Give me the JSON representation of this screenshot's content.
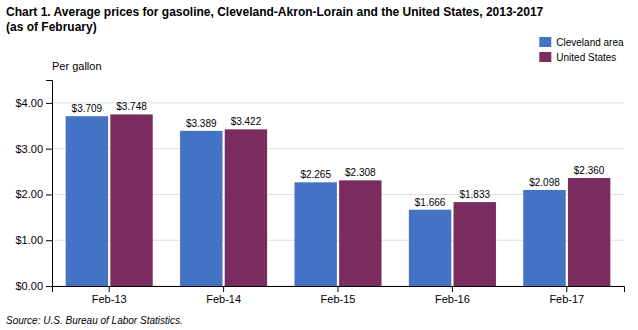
{
  "chart_data": {
    "type": "bar",
    "title": "Chart 1. Average prices for gasoline, Cleveland-Akron-Lorain and the United States, 2013-2017",
    "subtitle": "(as of February)",
    "y_label": "Per gallon",
    "source": "Source: U.S. Bureau of Labor Statistics.",
    "categories": [
      "Feb-13",
      "Feb-14",
      "Feb-15",
      "Feb-16",
      "Feb-17"
    ],
    "series": [
      {
        "name": "Cleveland area",
        "color": "#4472C4",
        "values": [
          3.709,
          3.389,
          2.265,
          1.666,
          2.098
        ],
        "value_labels": [
          "$3.709",
          "$3.389",
          "$2.265",
          "$1.666",
          "$2.098"
        ]
      },
      {
        "name": "United States",
        "color": "#7B2C5E",
        "values": [
          3.748,
          3.422,
          2.308,
          1.833,
          2.36
        ],
        "value_labels": [
          "$3.748",
          "$3.422",
          "$2.308",
          "$1.833",
          "$2.360"
        ]
      }
    ],
    "ylim": [
      0,
      4.5
    ],
    "yticks": [
      {
        "value": 0.0,
        "label": "$0.00"
      },
      {
        "value": 1.0,
        "label": "$1.00"
      },
      {
        "value": 2.0,
        "label": "$2.00"
      },
      {
        "value": 3.0,
        "label": "$3.00"
      },
      {
        "value": 4.0,
        "label": "$4.00"
      }
    ],
    "grid": true,
    "legend": "upper right",
    "data_labels": true
  }
}
